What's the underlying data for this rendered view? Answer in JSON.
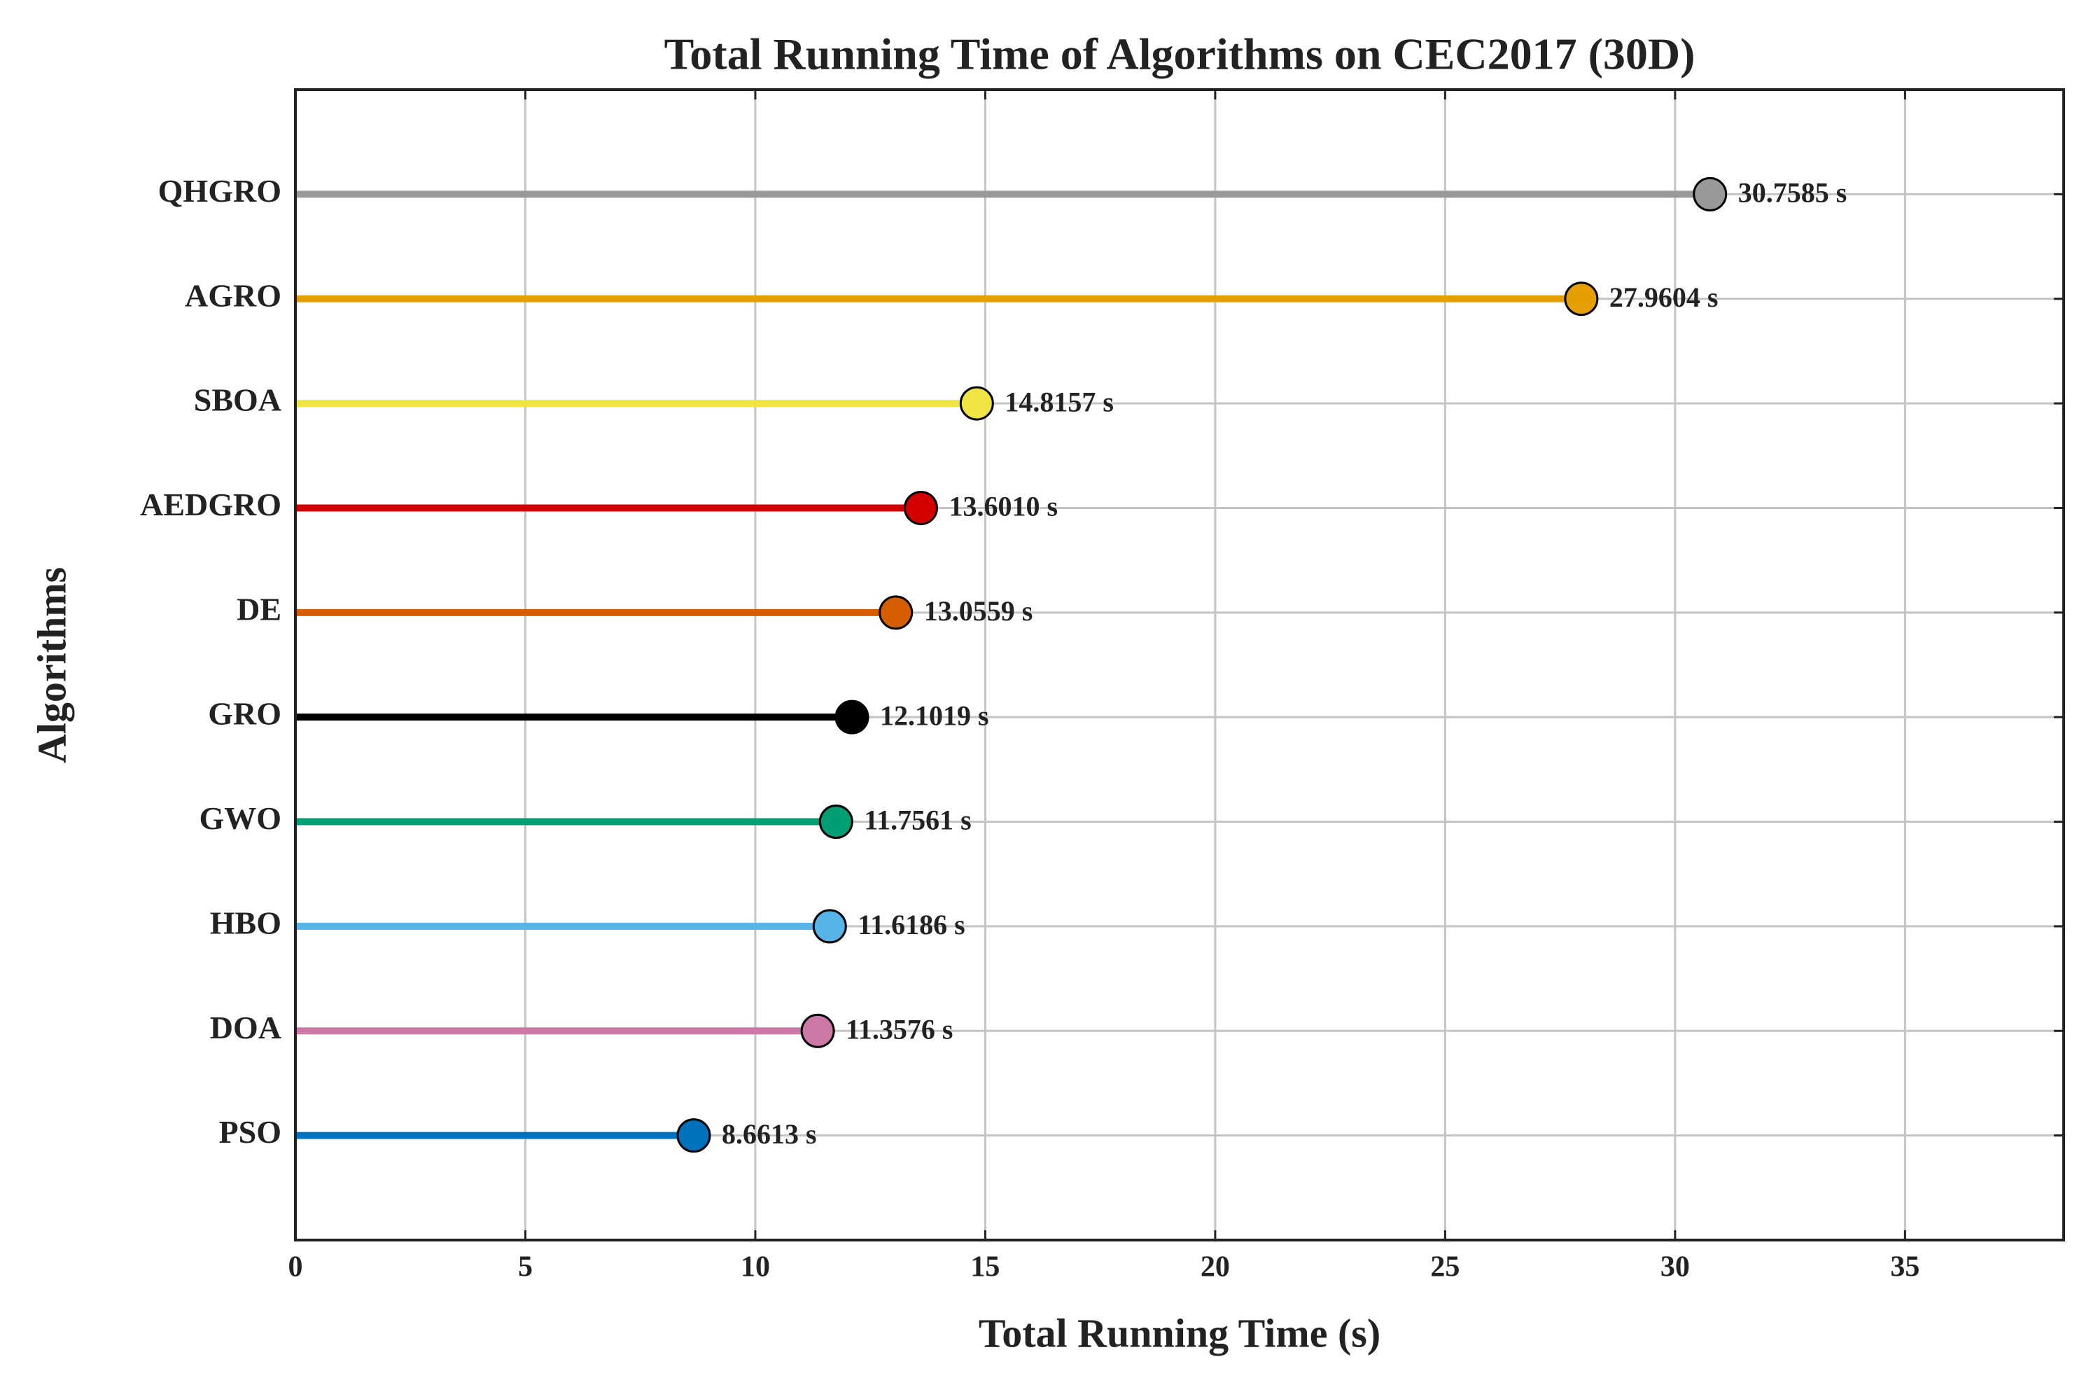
{
  "chart_data": {
    "type": "lollipop",
    "title": "Total Running Time of Algorithms on CEC2017 (30D)",
    "x_label": "Total Running Time (s)",
    "y_label": "Algorithms",
    "categories": [
      "PSO",
      "DOA",
      "HBO",
      "GWO",
      "GRO",
      "DE",
      "AEDGRO",
      "SBOA",
      "AGRO",
      "QHGRO"
    ],
    "values": [
      8.6613,
      11.3576,
      11.6186,
      11.7561,
      12.1019,
      13.0559,
      13.601,
      14.8157,
      27.9604,
      30.7585
    ],
    "value_labels": [
      "8.6613 s",
      "11.3576 s",
      "11.6186 s",
      "11.7561 s",
      "12.1019 s",
      "13.0559 s",
      "13.6010 s",
      "14.8157 s",
      "27.9604 s",
      "30.7585 s"
    ],
    "colors": [
      "#0072bd",
      "#cc79a7",
      "#56b4e9",
      "#009e73",
      "#000000",
      "#d55e00",
      "#d40000",
      "#f0e442",
      "#e69f00",
      "#999999"
    ],
    "xlim": [
      0,
      38.45
    ],
    "xticks": [
      0,
      5,
      10,
      15,
      20,
      25,
      30,
      35
    ],
    "grid": true
  }
}
